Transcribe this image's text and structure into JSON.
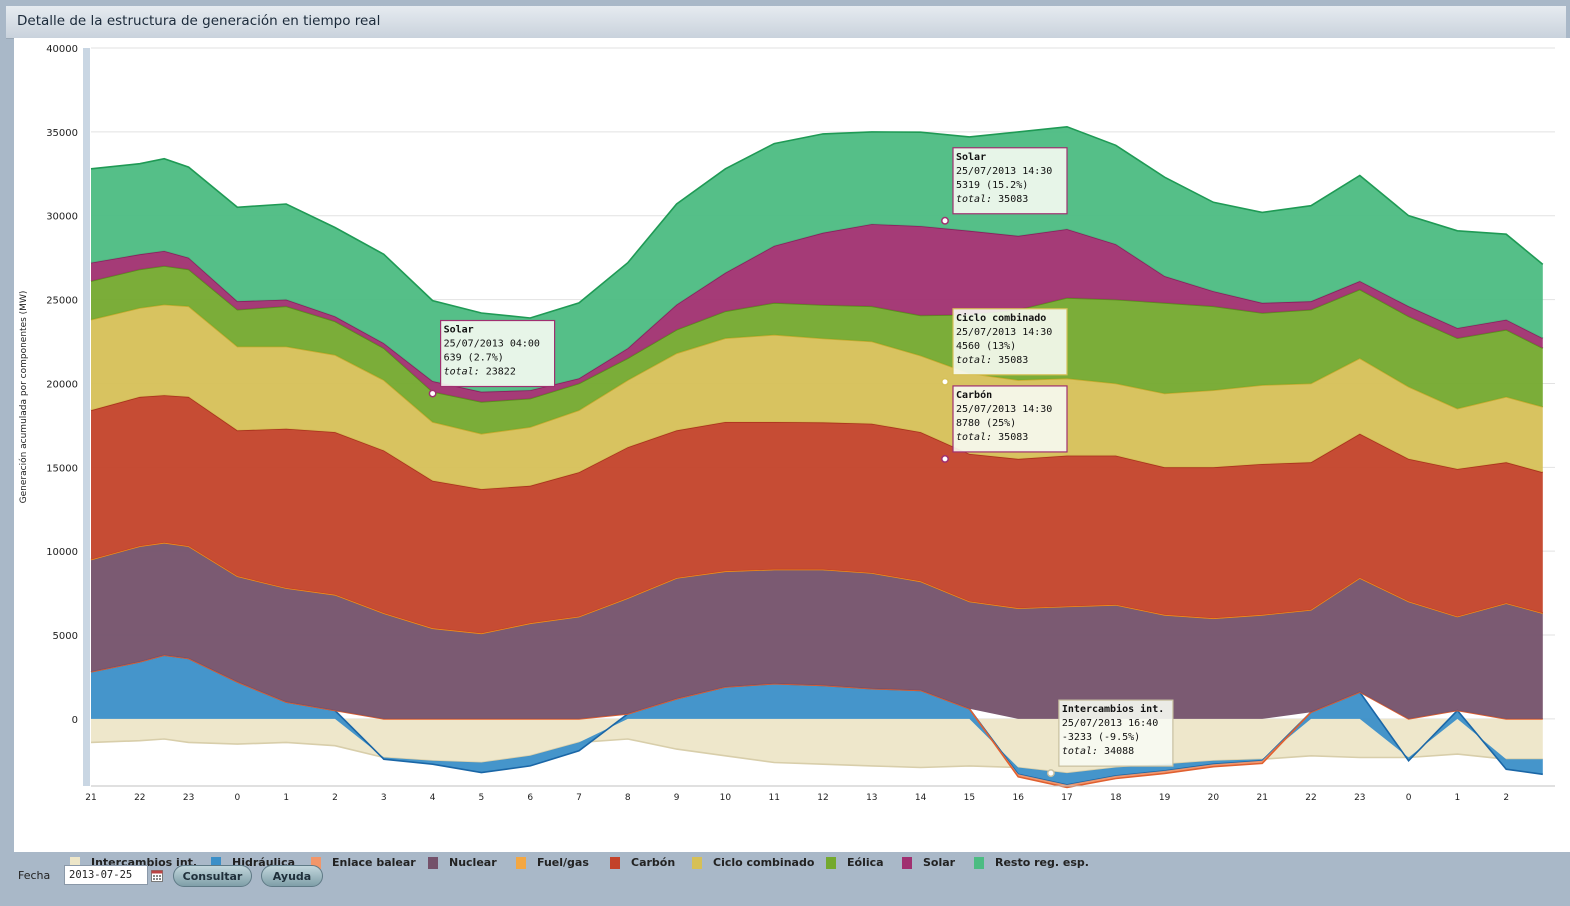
{
  "window": {
    "title": "Detalle de la estructura de generación en tiempo real"
  },
  "chart_data": {
    "type": "area",
    "stacked": true,
    "ylabel": "Generación acumulada por componentes (MW)",
    "ylim": [
      -4000,
      40000
    ],
    "yticks": [
      0,
      5000,
      10000,
      15000,
      20000,
      25000,
      30000,
      35000,
      40000
    ],
    "grid": true,
    "legend_position": "bottom",
    "x_tick_labels": [
      "21",
      "22",
      "23",
      "0",
      "1",
      "2",
      "3",
      "4",
      "5",
      "6",
      "7",
      "8",
      "9",
      "10",
      "11",
      "12",
      "13",
      "14",
      "15",
      "16",
      "17",
      "18",
      "19",
      "20",
      "21",
      "22",
      "23",
      "0",
      "1",
      "2"
    ],
    "x_range_hours": [
      0,
      30
    ],
    "x_hours": [
      0,
      1,
      1.5,
      2,
      3,
      4,
      5,
      6,
      7,
      8,
      9,
      10,
      11,
      12,
      13,
      14,
      15,
      16,
      17,
      18,
      19,
      20,
      21,
      22,
      23,
      24,
      25,
      26,
      27,
      28,
      29,
      29.75
    ],
    "series": [
      {
        "name": "Intercambios int.",
        "color": "#ede6c8",
        "stroke": "#d8ceaa",
        "values": [
          -1400,
          -1300,
          -1200,
          -1400,
          -1500,
          -1400,
          -1600,
          -2300,
          -2500,
          -2600,
          -2200,
          -1400,
          -1200,
          -1800,
          -2200,
          -2600,
          -2700,
          -2800,
          -2900,
          -2800,
          -2900,
          -3233,
          -2900,
          -2700,
          -2500,
          -2400,
          -2200,
          -2300,
          -2300,
          -2100,
          -2400,
          -2400
        ]
      },
      {
        "name": "Hidráulica",
        "color": "#3b8fc8",
        "stroke": "#1a66a6",
        "values": [
          2800,
          3400,
          3800,
          3600,
          2200,
          1000,
          500,
          -100,
          -200,
          -600,
          -600,
          -500,
          300,
          1200,
          1900,
          2100,
          2000,
          1800,
          1700,
          600,
          -400,
          -700,
          -500,
          -400,
          -200,
          -100,
          400,
          1600,
          -200,
          500,
          -600,
          -900
        ]
      },
      {
        "name": "Enlace balear",
        "color": "#f2966a",
        "stroke": "#e06030",
        "values": [
          0,
          0,
          0,
          0,
          0,
          0,
          0,
          0,
          0,
          0,
          0,
          0,
          0,
          0,
          0,
          0,
          0,
          0,
          0,
          0,
          -150,
          -150,
          -150,
          -150,
          -150,
          -150,
          0,
          0,
          0,
          0,
          0,
          0
        ]
      },
      {
        "name": "Nuclear",
        "color": "#74516a",
        "stroke": "#3a3a9a",
        "values": [
          6700,
          6900,
          6700,
          6700,
          6300,
          6800,
          6900,
          6300,
          5400,
          5100,
          5700,
          6100,
          6900,
          7200,
          6900,
          6800,
          6900,
          6900,
          6500,
          6400,
          6600,
          6700,
          6800,
          6200,
          6000,
          6200,
          6100,
          6800,
          7000,
          5600,
          6900,
          6300
        ]
      },
      {
        "name": "Fuel/gas",
        "color": "#f4a742",
        "stroke": "#f0901a",
        "values": [
          0,
          0,
          0,
          0,
          0,
          0,
          0,
          0,
          0,
          0,
          0,
          0,
          0,
          0,
          0,
          0,
          0,
          0,
          0,
          0,
          0,
          0,
          0,
          0,
          0,
          0,
          0,
          0,
          0,
          0,
          0,
          0
        ]
      },
      {
        "name": "Carbón",
        "color": "#c34229",
        "stroke": "#a8321c",
        "values": [
          8900,
          8900,
          8800,
          8900,
          8700,
          9500,
          9700,
          9700,
          8800,
          8600,
          8200,
          8600,
          9000,
          8800,
          8900,
          8800,
          8780,
          8900,
          8900,
          8800,
          8900,
          9000,
          8900,
          8800,
          9000,
          9000,
          8800,
          8600,
          8500,
          8800,
          8400,
          8400
        ]
      },
      {
        "name": "Ciclo combinado",
        "color": "#d6c057",
        "stroke": "#c8ac30",
        "values": [
          5400,
          5300,
          5400,
          5400,
          5000,
          4900,
          4600,
          4200,
          3500,
          3300,
          3500,
          3700,
          4000,
          4600,
          5000,
          5200,
          5000,
          4900,
          4560,
          4800,
          4700,
          4600,
          4300,
          4400,
          4600,
          4700,
          4700,
          4500,
          4300,
          3600,
          3900,
          3900
        ]
      },
      {
        "name": "Eólica",
        "color": "#74a92e",
        "stroke": "#5a8f1c",
        "values": [
          2300,
          2300,
          2300,
          2200,
          2200,
          2400,
          2000,
          1900,
          1800,
          1900,
          1700,
          1600,
          1300,
          1400,
          1600,
          1900,
          2000,
          2100,
          2400,
          3500,
          4200,
          4800,
          5000,
          5400,
          5000,
          4300,
          4400,
          4100,
          4200,
          4200,
          4000,
          3500
        ]
      },
      {
        "name": "Solar",
        "color": "#a03070",
        "stroke": "#8a1f5e",
        "values": [
          1100,
          900,
          900,
          700,
          500,
          400,
          300,
          300,
          639,
          600,
          500,
          300,
          600,
          1500,
          2300,
          3400,
          4300,
          4900,
          5319,
          5000,
          4400,
          4100,
          3300,
          1600,
          900,
          600,
          500,
          500,
          600,
          600,
          600,
          600
        ]
      },
      {
        "name": "Resto reg. esp.",
        "color": "#4cbc82",
        "stroke": "#1f9a55",
        "values": [
          5600,
          5400,
          5500,
          5400,
          5600,
          5700,
          5300,
          5300,
          4800,
          4700,
          4300,
          4500,
          5100,
          6000,
          6200,
          6100,
          5900,
          5500,
          5600,
          5600,
          6200,
          6100,
          5900,
          5900,
          5300,
          5400,
          5700,
          6300,
          5400,
          5800,
          5100,
          4400
        ]
      }
    ],
    "tooltips": [
      {
        "title": "Solar",
        "date": "25/07/2013 04:00",
        "value": "639 (2.7%)",
        "total_label": "total:",
        "total": "23822",
        "hour": 7,
        "at_value": 19400,
        "color": "#a03070"
      },
      {
        "title": "Solar",
        "date": "25/07/2013 14:30",
        "value": "5319 (15.2%)",
        "total_label": "total:",
        "total": "35083",
        "hour": 17.5,
        "at_value": 29700,
        "color": "#a03070"
      },
      {
        "title": "Ciclo combinado",
        "date": "25/07/2013 14:30",
        "value": "4560 (13%)",
        "total_label": "total:",
        "total": "35083",
        "hour": 17.5,
        "at_value": 20100,
        "color": "#d6c057"
      },
      {
        "title": "Carbón",
        "date": "25/07/2013 14:30",
        "value": "8780 (25%)",
        "total_label": "total:",
        "total": "35083",
        "hour": 17.5,
        "at_value": 15500,
        "color": "#a03070"
      },
      {
        "title": "Intercambios int.",
        "date": "25/07/2013 16:40",
        "value": "-3233 (-9.5%)",
        "total_label": "total:",
        "total": "34088",
        "hour": 19.67,
        "at_value": -3233,
        "color": "#c8c0a0"
      }
    ]
  },
  "footer": {
    "date_label": "Fecha",
    "date_value": "2013-07-25",
    "consult_label": "Consultar",
    "help_label": "Ayuda"
  }
}
